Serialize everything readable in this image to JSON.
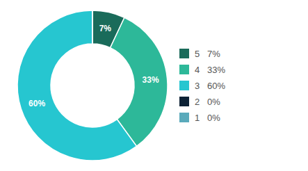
{
  "chart_data": {
    "type": "pie",
    "categories": [
      "5   7%",
      "4   33%",
      "3   60%",
      "2   0%",
      "1   0%"
    ],
    "values": [
      7,
      33,
      60,
      0.001,
      0.001
    ],
    "value_labels": [
      "7%",
      "33%",
      "60%",
      null,
      null
    ],
    "data_labels": true,
    "colors": [
      "#1a6b5a",
      "#2db899",
      "#26c6d0",
      "#0d2235",
      "#5aaabb"
    ],
    "legend": "right"
  }
}
